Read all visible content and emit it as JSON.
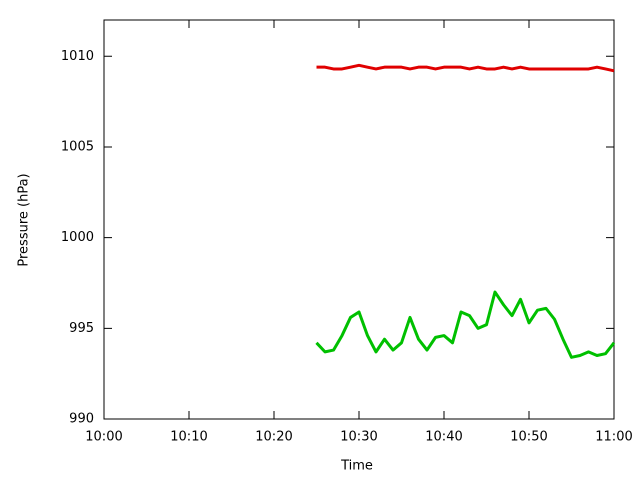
{
  "chart_data": {
    "type": "line",
    "xlabel": "Time",
    "ylabel": "Pressure (hPa)",
    "x": [
      "10:25",
      "10:26",
      "10:27",
      "10:28",
      "10:29",
      "10:30",
      "10:31",
      "10:32",
      "10:33",
      "10:34",
      "10:35",
      "10:36",
      "10:37",
      "10:38",
      "10:39",
      "10:40",
      "10:41",
      "10:42",
      "10:43",
      "10:44",
      "10:45",
      "10:46",
      "10:47",
      "10:48",
      "10:49",
      "10:50",
      "10:51",
      "10:52",
      "10:53",
      "10:54",
      "10:55",
      "10:56",
      "10:57",
      "10:58",
      "10:59",
      "11:00"
    ],
    "series": [
      {
        "color": "#e00000",
        "values": [
          1009.4,
          1009.4,
          1009.3,
          1009.3,
          1009.4,
          1009.5,
          1009.4,
          1009.3,
          1009.4,
          1009.4,
          1009.4,
          1009.3,
          1009.4,
          1009.4,
          1009.3,
          1009.4,
          1009.4,
          1009.4,
          1009.3,
          1009.4,
          1009.3,
          1009.3,
          1009.4,
          1009.3,
          1009.4,
          1009.3,
          1009.3,
          1009.3,
          1009.3,
          1009.3,
          1009.3,
          1009.3,
          1009.3,
          1009.4,
          1009.3,
          1009.2
        ]
      },
      {
        "color": "#00c000",
        "values": [
          994.2,
          993.7,
          993.8,
          994.6,
          995.6,
          995.9,
          994.6,
          993.7,
          994.4,
          993.8,
          994.2,
          995.6,
          994.4,
          993.8,
          994.5,
          994.6,
          994.2,
          995.9,
          995.7,
          995.0,
          995.2,
          997.0,
          996.3,
          995.7,
          996.6,
          995.3,
          996.0,
          996.1,
          995.5,
          994.4,
          993.4,
          993.5,
          993.7,
          993.5,
          993.6,
          994.2
        ]
      }
    ],
    "xlim": [
      "10:00",
      "11:00"
    ],
    "xticks": [
      "10:00",
      "10:10",
      "10:20",
      "10:30",
      "10:40",
      "10:50",
      "11:00"
    ],
    "ylim": [
      990,
      1012
    ],
    "yticks": [
      990,
      995,
      1000,
      1005,
      1010
    ]
  }
}
